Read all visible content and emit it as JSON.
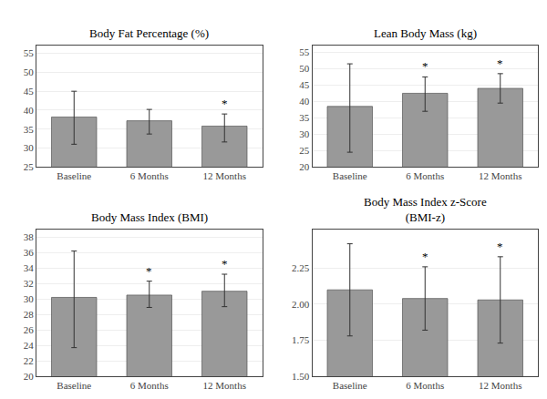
{
  "chart_data": [
    {
      "type": "bar",
      "title": "Body Fat Percentage (%)",
      "categories": [
        "Baseline",
        "6 Months",
        "12 Months"
      ],
      "values": [
        38.2,
        37.2,
        35.8
      ],
      "errors_upper": [
        6.8,
        3.0,
        3.2
      ],
      "errors_lower": [
        7.2,
        3.5,
        4.2
      ],
      "color": "#999999",
      "ylim": [
        25,
        57
      ],
      "yticks": [
        25,
        30,
        35,
        40,
        45,
        50,
        55
      ],
      "grid": true,
      "annotations": [
        {
          "category": "12 Months",
          "text": "*"
        }
      ]
    },
    {
      "type": "bar",
      "title": "Lean Body Mass (kg)",
      "categories": [
        "Baseline",
        "6 Months",
        "12 Months"
      ],
      "values": [
        38.5,
        42.5,
        44.0
      ],
      "errors_upper": [
        13.0,
        5.0,
        4.5
      ],
      "errors_lower": [
        14.0,
        5.5,
        4.5
      ],
      "color": "#999999",
      "ylim": [
        20,
        57
      ],
      "yticks": [
        20,
        25,
        30,
        35,
        40,
        45,
        50,
        55
      ],
      "grid": true,
      "annotations": [
        {
          "category": "6 Months",
          "text": "*"
        },
        {
          "category": "12 Months",
          "text": "*"
        }
      ]
    },
    {
      "type": "bar",
      "title": "Body Mass Index (BMI)",
      "categories": [
        "Baseline",
        "6 Months",
        "12 Months"
      ],
      "values": [
        30.2,
        30.5,
        31.0
      ],
      "errors_upper": [
        6.0,
        1.8,
        2.2
      ],
      "errors_lower": [
        6.5,
        1.6,
        2.0
      ],
      "color": "#999999",
      "ylim": [
        20,
        39
      ],
      "yticks": [
        20,
        22,
        24,
        26,
        28,
        30,
        32,
        34,
        36,
        38
      ],
      "grid": true,
      "annotations": [
        {
          "category": "6 Months",
          "text": "*"
        },
        {
          "category": "12 Months",
          "text": "*"
        }
      ]
    },
    {
      "type": "bar",
      "title": "Body Mass Index z-Score\n(BMI-z)",
      "categories": [
        "Baseline",
        "6 Months",
        "12 Months"
      ],
      "values": [
        2.1,
        2.04,
        2.03
      ],
      "errors_upper": [
        0.32,
        0.22,
        0.3
      ],
      "errors_lower": [
        0.32,
        0.22,
        0.3
      ],
      "color": "#999999",
      "ylim": [
        1.5,
        2.52
      ],
      "yticks": [
        {
          "value": 1.5,
          "label": "1.50"
        },
        1.75,
        {
          "value": 2.0,
          "label": "2.00"
        },
        2.25
      ],
      "grid": true,
      "annotations": [
        {
          "category": "6 Months",
          "text": "*"
        },
        {
          "category": "12 Months",
          "text": "*"
        }
      ]
    }
  ]
}
